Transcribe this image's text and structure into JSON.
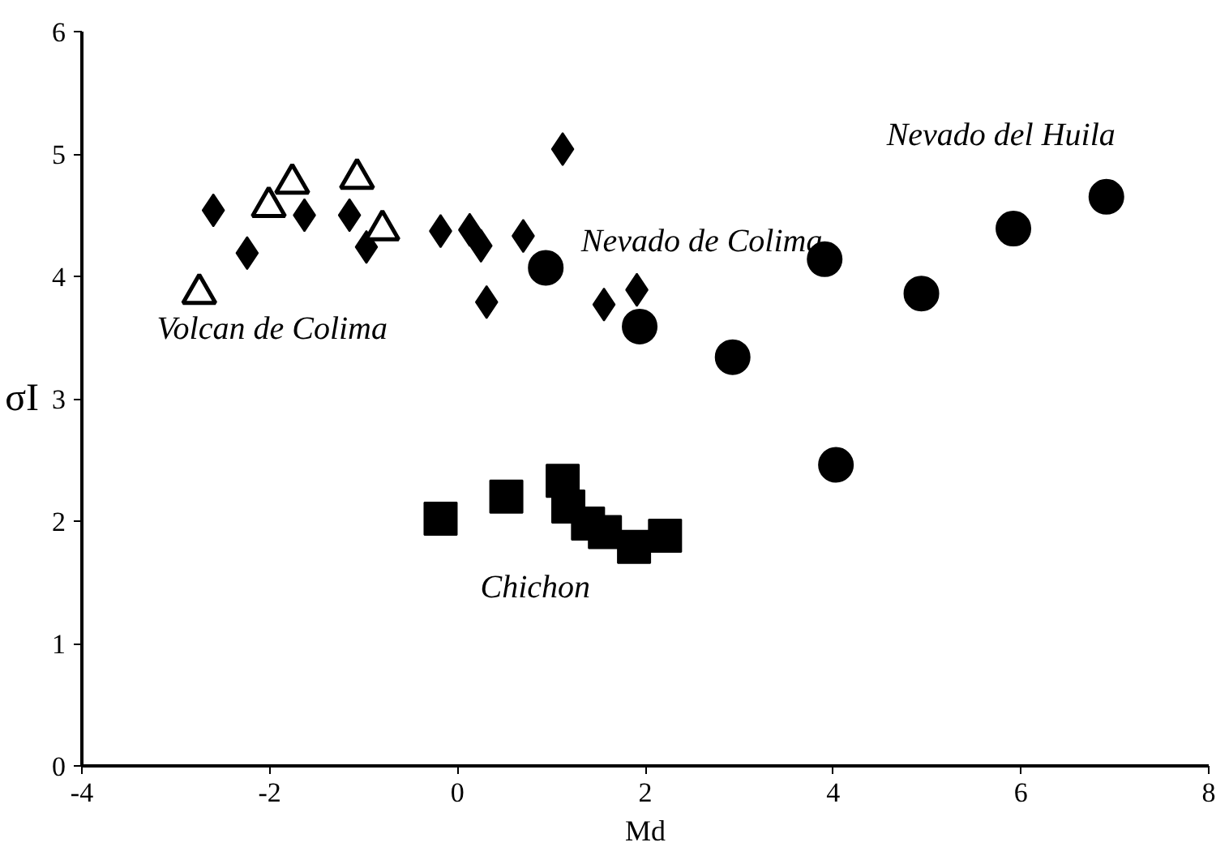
{
  "chart_data": {
    "type": "scatter",
    "xlabel": "Md",
    "ylabel": "σI",
    "xlim": [
      -4,
      8
    ],
    "xticks": [
      -4,
      -2,
      0,
      2,
      4,
      6,
      8
    ],
    "ylim": [
      0,
      6
    ],
    "yticks": [
      0,
      1,
      2,
      3,
      4,
      5,
      6
    ],
    "grid": false,
    "legend": false,
    "series": [
      {
        "name": "Nevado de Colima",
        "marker": "diamond",
        "color": "#000000",
        "x": [
          -2.6,
          -2.24,
          -1.63,
          -1.15,
          -0.97,
          -0.18,
          0.13,
          0.25,
          0.7,
          1.12,
          0.31,
          1.56,
          1.91
        ],
        "values": [
          4.54,
          4.19,
          4.5,
          4.5,
          4.24,
          4.37,
          4.38,
          4.25,
          4.33,
          5.04,
          3.79,
          3.77,
          3.89
        ]
      },
      {
        "name": "Volcan de Colima",
        "marker": "triangle",
        "color": "#ffffff",
        "x": [
          -2.75,
          -2.01,
          -1.76,
          -1.07,
          -0.8
        ],
        "values": [
          3.86,
          4.57,
          4.76,
          4.8,
          4.38
        ]
      },
      {
        "name": "Chichon",
        "marker": "square",
        "color": "#000000",
        "x": [
          -0.18,
          0.52,
          1.12,
          1.18,
          1.39,
          1.57,
          1.88,
          2.21
        ],
        "values": [
          2.02,
          2.2,
          2.33,
          2.12,
          1.98,
          1.91,
          1.79,
          1.88
        ]
      },
      {
        "name": "Nevado del Huila",
        "marker": "circle",
        "color": "#000000",
        "x": [
          0.94,
          1.94,
          2.93,
          3.91,
          4.03,
          4.94,
          5.92,
          6.91
        ],
        "values": [
          4.07,
          3.59,
          3.34,
          4.14,
          2.46,
          3.86,
          4.39,
          4.65
        ]
      }
    ]
  }
}
